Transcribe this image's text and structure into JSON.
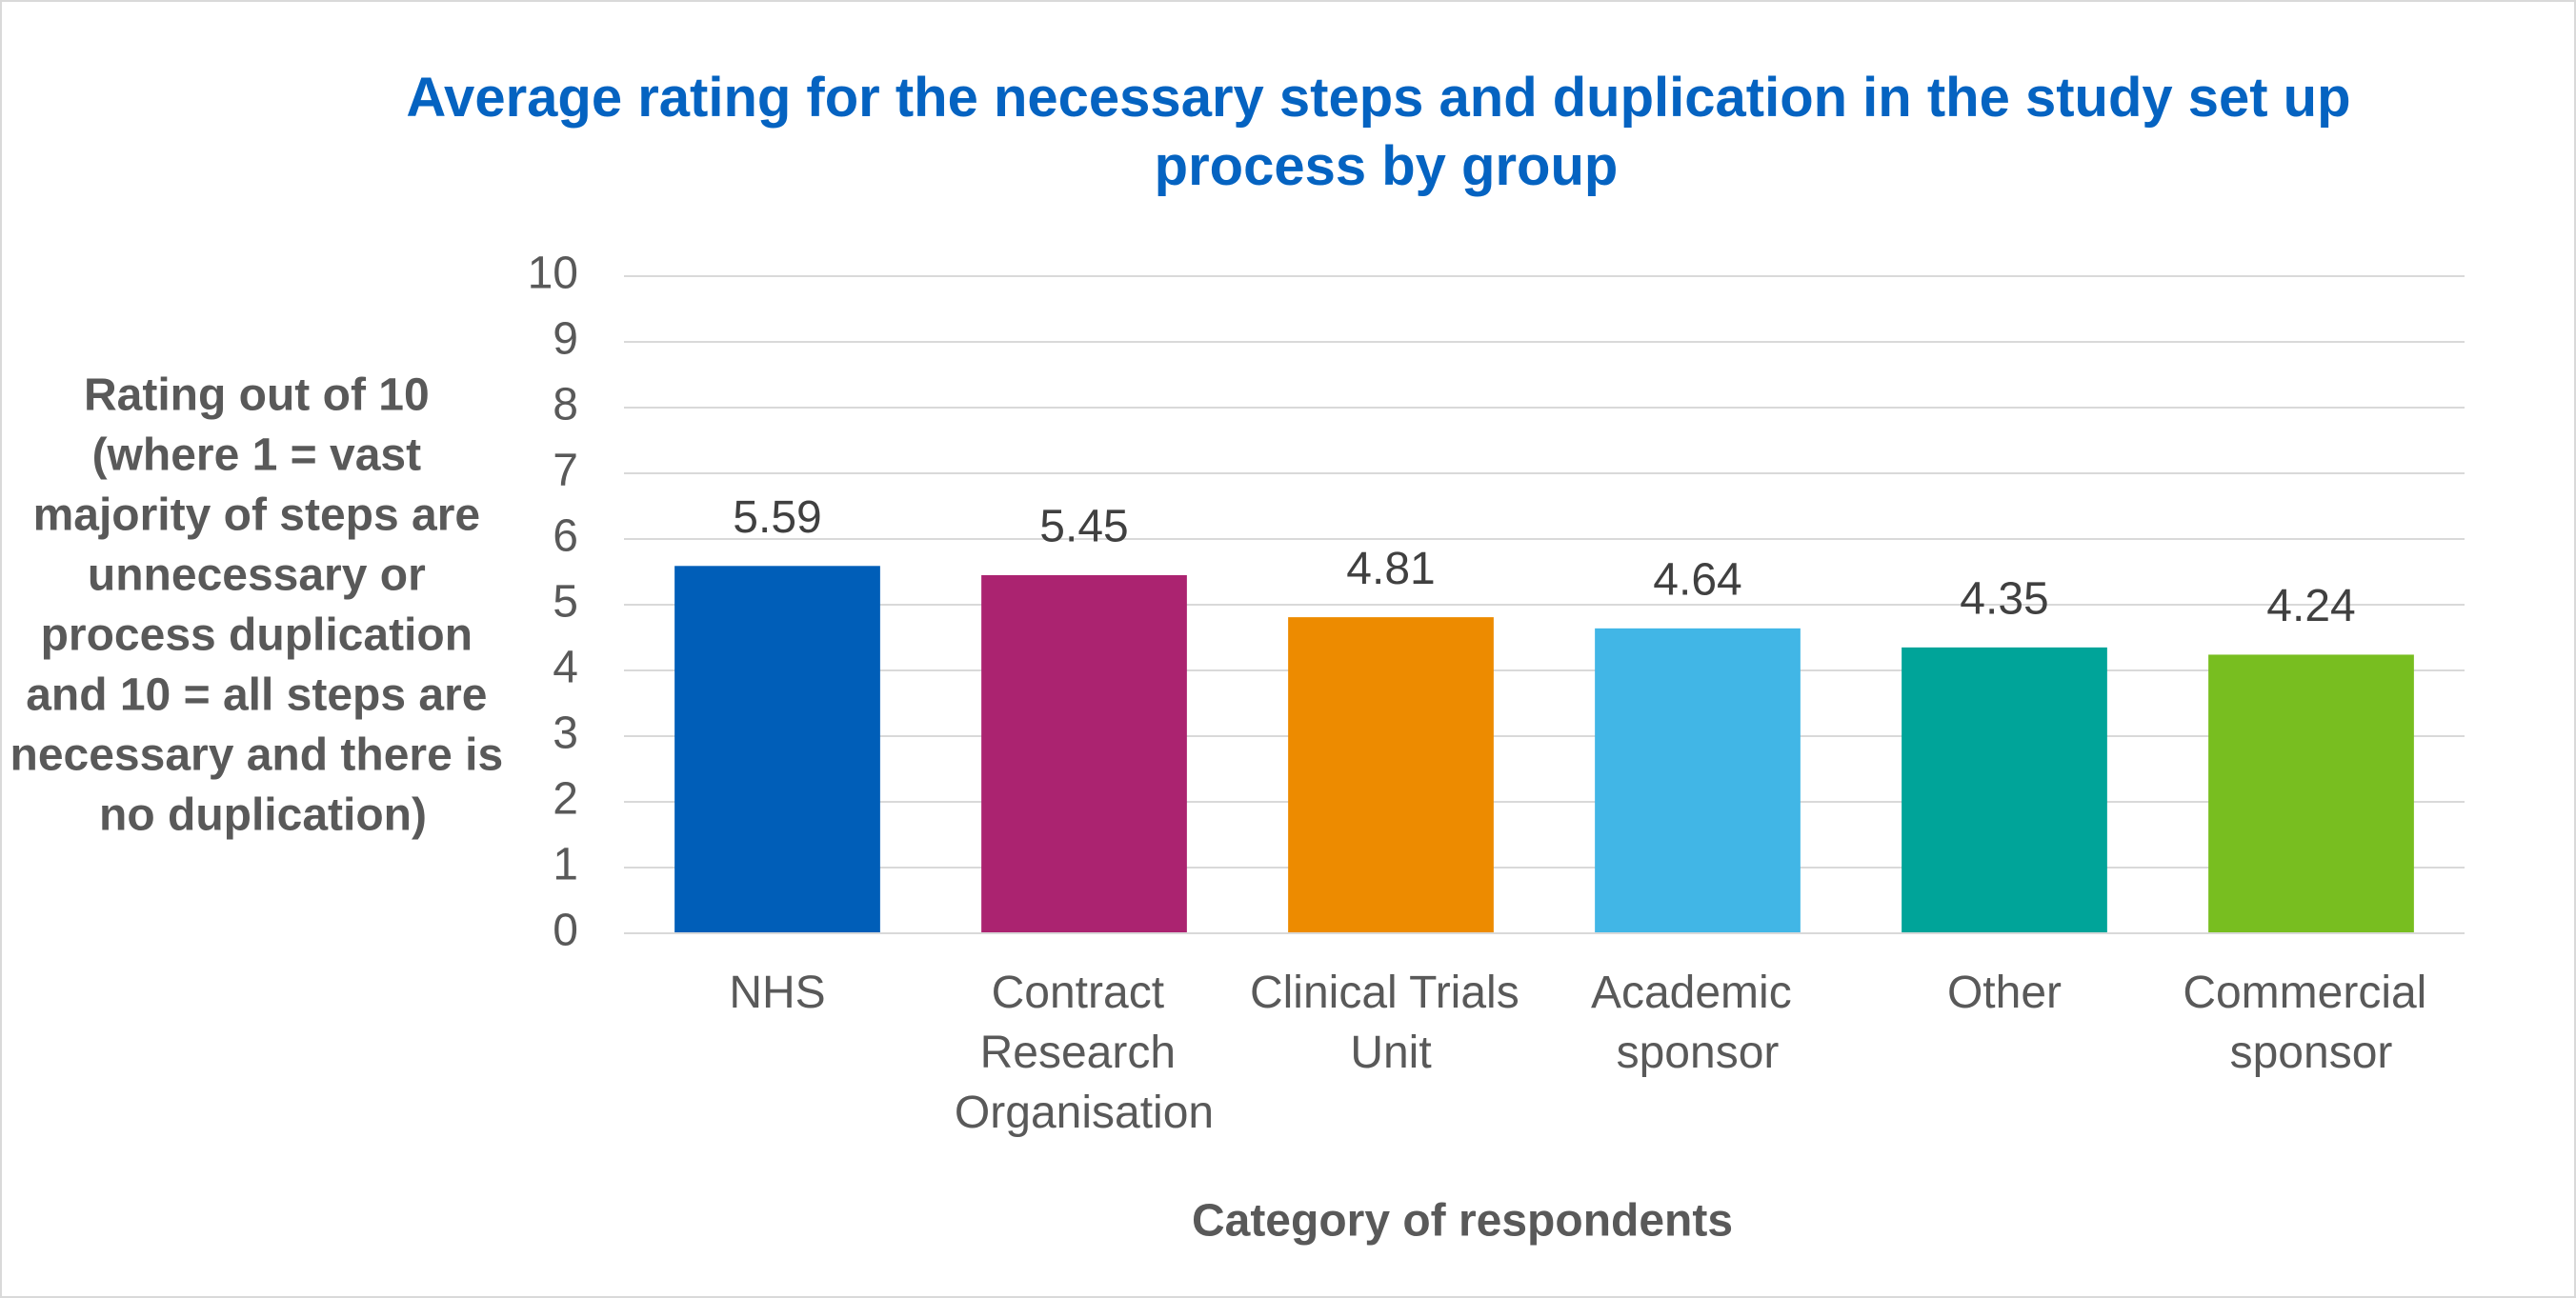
{
  "chart_data": {
    "type": "bar",
    "title": "Average rating for the necessary steps and duplication in the study set up process by group",
    "x_label": "Category of respondents",
    "y_label": "Rating out of 10 (where 1 = vast majority of steps are unnecessary or process duplication and 10 = all steps are necessary and there is no duplication)",
    "categories": [
      "NHS",
      "Contract Research Organisation",
      "Clinical Trials Unit",
      "Academic sponsor",
      "Other",
      "Commercial sponsor"
    ],
    "values": [
      5.59,
      5.45,
      4.81,
      4.64,
      4.35,
      4.24
    ],
    "colors": [
      "#005eb8",
      "#ab2370",
      "#ed8b00",
      "#41b6e6",
      "#00a499",
      "#78be20"
    ],
    "ylim": [
      0,
      10
    ],
    "yticks": [
      0,
      1,
      2,
      3,
      4,
      5,
      6,
      7,
      8,
      9,
      10
    ],
    "grid": true
  }
}
